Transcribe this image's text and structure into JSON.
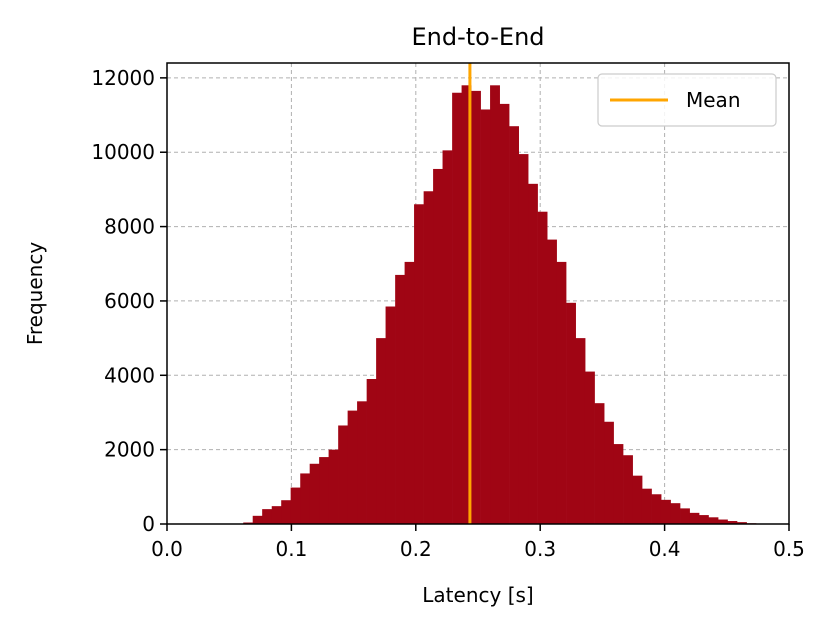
{
  "chart_data": {
    "type": "bar",
    "title": "End-to-End",
    "xlabel": "Latency [s]",
    "ylabel": "Frequency",
    "xlim": [
      0.0,
      0.5
    ],
    "ylim": [
      0,
      12400
    ],
    "xticks": [
      0.0,
      0.1,
      0.2,
      0.3,
      0.4,
      0.5
    ],
    "xtick_labels": [
      "0.0",
      "0.1",
      "0.2",
      "0.3",
      "0.4",
      "0.5"
    ],
    "yticks": [
      0,
      2000,
      4000,
      6000,
      8000,
      10000,
      12000
    ],
    "ytick_labels": [
      "0",
      "2000",
      "4000",
      "6000",
      "8000",
      "10000",
      "12000"
    ],
    "grid": true,
    "legend_position": "top-right",
    "bin_width": 0.00763,
    "bins_start": [
      0.0613,
      0.0689,
      0.0765,
      0.0842,
      0.0918,
      0.0994,
      0.1071,
      0.1147,
      0.1223,
      0.1299,
      0.1376,
      0.1452,
      0.1528,
      0.1605,
      0.1681,
      0.1757,
      0.1834,
      0.191,
      0.1986,
      0.2063,
      0.2139,
      0.2215,
      0.2292,
      0.2368,
      0.2444,
      0.2521,
      0.2597,
      0.2673,
      0.275,
      0.2826,
      0.2902,
      0.2979,
      0.3055,
      0.3131,
      0.3208,
      0.3284,
      0.336,
      0.3437,
      0.3513,
      0.3589,
      0.3666,
      0.3742,
      0.3818,
      0.3895,
      0.3971,
      0.4047,
      0.4124,
      0.42,
      0.4276,
      0.4353,
      0.4429,
      0.4505,
      0.4582,
      0.4658,
      0.4734
    ],
    "values": [
      40,
      220,
      400,
      480,
      640,
      980,
      1360,
      1620,
      1800,
      2000,
      2650,
      3050,
      3300,
      3900,
      5000,
      5850,
      6700,
      7050,
      8600,
      8950,
      9550,
      10050,
      11600,
      11800,
      11650,
      11150,
      11800,
      11300,
      10700,
      9950,
      9150,
      8400,
      7650,
      7050,
      5950,
      5000,
      4100,
      3250,
      2750,
      2150,
      1850,
      1300,
      950,
      800,
      650,
      560,
      420,
      300,
      240,
      180,
      120,
      80,
      50,
      20,
      10
    ],
    "bar_color": "#a00514",
    "mean_line": {
      "x": 0.2435,
      "color": "#ffa500",
      "label": "Mean"
    }
  }
}
